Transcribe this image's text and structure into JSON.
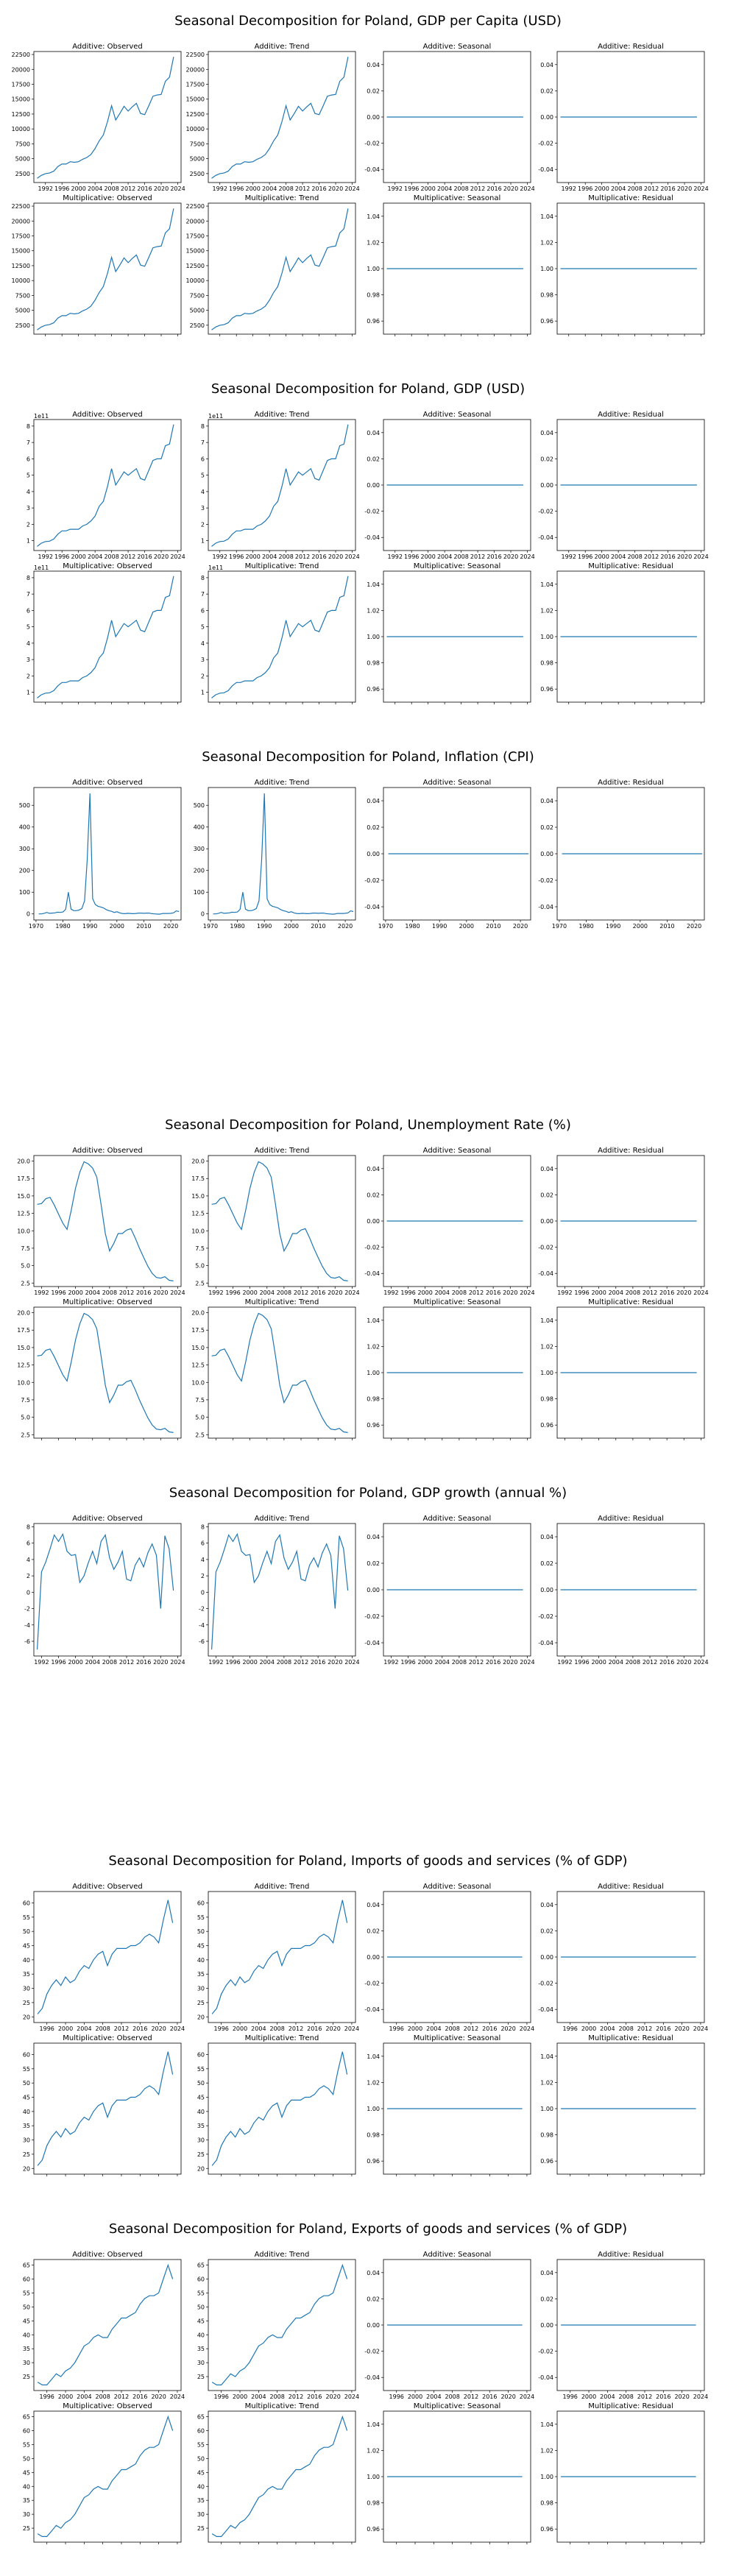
{
  "figures": [
    {
      "title": "Seasonal Decomposition for Poland, GDP per Capita (USD)",
      "chart_data": {
        "type": "line",
        "panel_titles": [
          "Additive: Observed",
          "Additive: Trend",
          "Additive: Seasonal",
          "Additive: Residual",
          "Multiplicative: Observed",
          "Multiplicative: Trend",
          "Multiplicative: Seasonal",
          "Multiplicative: Residual"
        ],
        "xticks": [
          "1992",
          "1996",
          "2000",
          "2004",
          "2008",
          "2012",
          "2016",
          "2020",
          "2024"
        ],
        "x": [
          1990,
          1991,
          1992,
          1993,
          1994,
          1995,
          1996,
          1997,
          1998,
          1999,
          2000,
          2001,
          2002,
          2003,
          2004,
          2005,
          2006,
          2007,
          2008,
          2009,
          2010,
          2011,
          2012,
          2013,
          2014,
          2015,
          2016,
          2017,
          2018,
          2019,
          2020,
          2021,
          2022,
          2023
        ],
        "values": [
          1700,
          2200,
          2500,
          2600,
          2900,
          3700,
          4100,
          4100,
          4500,
          4400,
          4500,
          4900,
          5200,
          5700,
          6700,
          8000,
          9000,
          11200,
          13900,
          11500,
          12600,
          13800,
          13000,
          13700,
          14300,
          12600,
          12400,
          13900,
          15500,
          15700,
          15800,
          18000,
          18700,
          22100
        ],
        "yticks": [
          "2500",
          "5000",
          "7500",
          "10000",
          "12500",
          "15000",
          "17500",
          "20000",
          "22500"
        ],
        "ylim": [
          1000,
          23000
        ],
        "flat_yticks": [
          "-0.04",
          "-0.02",
          "0.00",
          "0.02",
          "0.04"
        ],
        "mult_flat_yticks": [
          "0.96",
          "0.98",
          "1.00",
          "1.02",
          "1.04"
        ],
        "offset_label": ""
      }
    },
    {
      "title": "Seasonal Decomposition for Poland, GDP (USD)",
      "chart_data": {
        "type": "line",
        "panel_titles": [
          "Additive: Observed",
          "Additive: Trend",
          "Additive: Seasonal",
          "Additive: Residual",
          "Multiplicative: Observed",
          "Multiplicative: Trend",
          "Multiplicative: Seasonal",
          "Multiplicative: Residual"
        ],
        "xticks": [
          "1992",
          "1996",
          "2000",
          "2004",
          "2008",
          "2012",
          "2016",
          "2020",
          "2024"
        ],
        "x": [
          1990,
          1991,
          1992,
          1993,
          1994,
          1995,
          1996,
          1997,
          1998,
          1999,
          2000,
          2001,
          2002,
          2003,
          2004,
          2005,
          2006,
          2007,
          2008,
          2009,
          2010,
          2011,
          2012,
          2013,
          2014,
          2015,
          2016,
          2017,
          2018,
          2019,
          2020,
          2021,
          2022,
          2023
        ],
        "values": [
          0.65,
          0.85,
          0.95,
          0.97,
          1.1,
          1.4,
          1.6,
          1.6,
          1.7,
          1.7,
          1.7,
          1.9,
          2.0,
          2.2,
          2.5,
          3.1,
          3.4,
          4.3,
          5.4,
          4.4,
          4.8,
          5.2,
          5.0,
          5.2,
          5.4,
          4.8,
          4.7,
          5.3,
          5.9,
          6.0,
          6.0,
          6.8,
          6.9,
          8.1
        ],
        "yticks": [
          "1",
          "2",
          "3",
          "4",
          "5",
          "6",
          "7",
          "8"
        ],
        "ylim": [
          0.4,
          8.4
        ],
        "flat_yticks": [
          "-0.04",
          "-0.02",
          "0.00",
          "0.02",
          "0.04"
        ],
        "mult_flat_yticks": [
          "0.96",
          "0.98",
          "1.00",
          "1.02",
          "1.04"
        ],
        "offset_label": "1e11"
      }
    },
    {
      "title": "Seasonal Decomposition for Poland, Inflation (CPI)",
      "chart_data": {
        "type": "line",
        "panel_titles": [
          "Additive: Observed",
          "Additive: Trend",
          "Additive: Seasonal",
          "Additive: Residual"
        ],
        "xticks": [
          "1970",
          "1980",
          "1990",
          "2000",
          "2010",
          "2020"
        ],
        "x": [
          1971,
          1972,
          1973,
          1974,
          1975,
          1976,
          1977,
          1978,
          1979,
          1980,
          1981,
          1982,
          1983,
          1984,
          1985,
          1986,
          1987,
          1988,
          1989,
          1990,
          1991,
          1992,
          1993,
          1994,
          1995,
          1996,
          1997,
          1998,
          1999,
          2000,
          2001,
          2002,
          2003,
          2004,
          2005,
          2006,
          2007,
          2008,
          2009,
          2010,
          2011,
          2012,
          2013,
          2014,
          2015,
          2016,
          2017,
          2018,
          2019,
          2020,
          2021,
          2022,
          2023
        ],
        "values": [
          0,
          0,
          3,
          7,
          3,
          4,
          5,
          8,
          7,
          9,
          21,
          100,
          22,
          15,
          15,
          18,
          25,
          60,
          250,
          555,
          70,
          43,
          35,
          32,
          28,
          20,
          15,
          12,
          7,
          10,
          5,
          2,
          1,
          3,
          2,
          1,
          2,
          4,
          4,
          3,
          4,
          4,
          1,
          0,
          -1,
          -1,
          2,
          2,
          2,
          3,
          5,
          14,
          11
        ],
        "yticks": [
          "0",
          "100",
          "200",
          "300",
          "400",
          "500"
        ],
        "ylim": [
          -28,
          582
        ],
        "flat_yticks": [
          "-0.04",
          "-0.02",
          "0.00",
          "0.02",
          "0.04"
        ],
        "offset_label": ""
      }
    },
    {
      "title": "Seasonal Decomposition for Poland, Unemployment Rate (%)",
      "chart_data": {
        "type": "line",
        "panel_titles": [
          "Additive: Observed",
          "Additive: Trend",
          "Additive: Seasonal",
          "Additive: Residual",
          "Multiplicative: Observed",
          "Multiplicative: Trend",
          "Multiplicative: Seasonal",
          "Multiplicative: Residual"
        ],
        "xticks": [
          "1992",
          "1996",
          "2000",
          "2004",
          "2008",
          "2012",
          "2016",
          "2020",
          "2024"
        ],
        "x": [
          1991,
          1992,
          1993,
          1994,
          1995,
          1996,
          1997,
          1998,
          1999,
          2000,
          2001,
          2002,
          2003,
          2004,
          2005,
          2006,
          2007,
          2008,
          2009,
          2010,
          2011,
          2012,
          2013,
          2014,
          2015,
          2016,
          2017,
          2018,
          2019,
          2020,
          2021,
          2022,
          2023
        ],
        "values": [
          13.8,
          13.9,
          14.6,
          14.8,
          13.7,
          12.4,
          11.1,
          10.2,
          13.0,
          16.1,
          18.4,
          19.9,
          19.6,
          19.0,
          17.7,
          13.8,
          9.6,
          7.1,
          8.2,
          9.6,
          9.6,
          10.1,
          10.3,
          9.0,
          7.5,
          6.2,
          4.9,
          3.9,
          3.3,
          3.2,
          3.4,
          2.9,
          2.8
        ],
        "yticks": [
          "2.5",
          "5.0",
          "7.5",
          "10.0",
          "12.5",
          "15.0",
          "17.5",
          "20.0"
        ],
        "ylim": [
          2.0,
          20.8
        ],
        "flat_yticks": [
          "-0.04",
          "-0.02",
          "0.00",
          "0.02",
          "0.04"
        ],
        "mult_flat_yticks": [
          "0.96",
          "0.98",
          "1.00",
          "1.02",
          "1.04"
        ],
        "offset_label": ""
      }
    },
    {
      "title": "Seasonal Decomposition for Poland, GDP growth (annual %)",
      "chart_data": {
        "type": "line",
        "panel_titles": [
          "Additive: Observed",
          "Additive: Trend",
          "Additive: Seasonal",
          "Additive: Residual"
        ],
        "xticks": [
          "1992",
          "1996",
          "2000",
          "2004",
          "2008",
          "2012",
          "2016",
          "2020",
          "2024"
        ],
        "x": [
          1991,
          1992,
          1993,
          1994,
          1995,
          1996,
          1997,
          1998,
          1999,
          2000,
          2001,
          2002,
          2003,
          2004,
          2005,
          2006,
          2007,
          2008,
          2009,
          2010,
          2011,
          2012,
          2013,
          2014,
          2015,
          2016,
          2017,
          2018,
          2019,
          2020,
          2021,
          2022,
          2023
        ],
        "values": [
          -7.0,
          2.5,
          3.7,
          5.3,
          7.0,
          6.2,
          7.1,
          5.0,
          4.5,
          4.6,
          1.2,
          2.0,
          3.6,
          5.0,
          3.5,
          6.2,
          7.0,
          4.2,
          2.8,
          3.7,
          5.0,
          1.6,
          1.4,
          3.3,
          4.2,
          3.1,
          4.8,
          5.9,
          4.5,
          -2.0,
          6.9,
          5.3,
          0.2
        ],
        "yticks": [
          "-6",
          "-4",
          "-2",
          "0",
          "2",
          "4",
          "6",
          "8"
        ],
        "ylim": [
          -7.8,
          8.4
        ],
        "flat_yticks": [
          "-0.04",
          "-0.02",
          "0.00",
          "0.02",
          "0.04"
        ],
        "offset_label": ""
      }
    },
    {
      "title": "Seasonal Decomposition for Poland, Imports of goods and services (% of GDP)",
      "chart_data": {
        "type": "line",
        "panel_titles": [
          "Additive: Observed",
          "Additive: Trend",
          "Additive: Seasonal",
          "Additive: Residual",
          "Multiplicative: Observed",
          "Multiplicative: Trend",
          "Multiplicative: Seasonal",
          "Multiplicative: Residual"
        ],
        "xticks": [
          "1996",
          "2000",
          "2004",
          "2008",
          "2012",
          "2016",
          "2020",
          "2024"
        ],
        "x": [
          1994,
          1995,
          1996,
          1997,
          1998,
          1999,
          2000,
          2001,
          2002,
          2003,
          2004,
          2005,
          2006,
          2007,
          2008,
          2009,
          2010,
          2011,
          2012,
          2013,
          2014,
          2015,
          2016,
          2017,
          2018,
          2019,
          2020,
          2021,
          2022,
          2023
        ],
        "values": [
          21,
          23,
          28,
          31,
          33,
          31,
          34,
          32,
          33,
          36,
          38,
          37,
          40,
          42,
          43,
          38,
          42,
          44,
          44,
          44,
          45,
          45,
          46,
          48,
          49,
          48,
          46,
          54,
          61,
          53
        ],
        "yticks": [
          "20",
          "25",
          "30",
          "35",
          "40",
          "45",
          "50",
          "55",
          "60"
        ],
        "ylim": [
          18,
          64
        ],
        "flat_yticks": [
          "-0.04",
          "-0.02",
          "0.00",
          "0.02",
          "0.04"
        ],
        "mult_flat_yticks": [
          "0.96",
          "0.98",
          "1.00",
          "1.02",
          "1.04"
        ],
        "offset_label": ""
      }
    },
    {
      "title": "Seasonal Decomposition for Poland, Exports of goods and services (% of GDP)",
      "chart_data": {
        "type": "line",
        "panel_titles": [
          "Additive: Observed",
          "Additive: Trend",
          "Additive: Seasonal",
          "Additive: Residual",
          "Multiplicative: Observed",
          "Multiplicative: Trend",
          "Multiplicative: Seasonal",
          "Multiplicative: Residual"
        ],
        "xticks": [
          "1996",
          "2000",
          "2004",
          "2008",
          "2012",
          "2016",
          "2020",
          "2024"
        ],
        "x": [
          1994,
          1995,
          1996,
          1997,
          1998,
          1999,
          2000,
          2001,
          2002,
          2003,
          2004,
          2005,
          2006,
          2007,
          2008,
          2009,
          2010,
          2011,
          2012,
          2013,
          2014,
          2015,
          2016,
          2017,
          2018,
          2019,
          2020,
          2021,
          2022,
          2023
        ],
        "values": [
          23,
          22,
          22,
          24,
          26,
          25,
          27,
          28,
          30,
          33,
          36,
          37,
          39,
          40,
          39,
          39,
          42,
          44,
          46,
          46,
          47,
          48,
          51,
          53,
          54,
          54,
          55,
          60,
          65,
          60
        ],
        "yticks": [
          "25",
          "30",
          "35",
          "40",
          "45",
          "50",
          "55",
          "60",
          "65"
        ],
        "ylim": [
          20,
          67
        ],
        "flat_yticks": [
          "-0.04",
          "-0.02",
          "0.00",
          "0.02",
          "0.04"
        ],
        "mult_flat_yticks": [
          "0.96",
          "0.98",
          "1.00",
          "1.02",
          "1.04"
        ],
        "offset_label": ""
      }
    }
  ],
  "colors": {
    "line": "#1f77b4",
    "axis": "#000000",
    "background": "#ffffff"
  }
}
